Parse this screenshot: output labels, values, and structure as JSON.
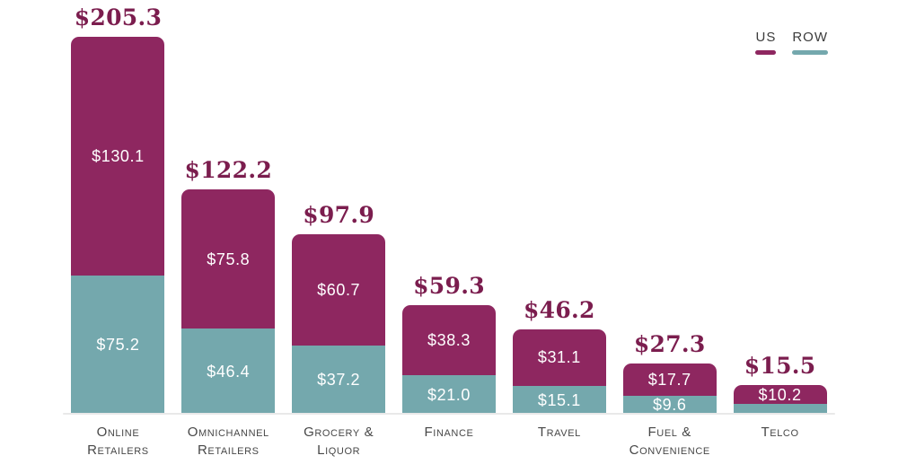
{
  "chart_data": {
    "type": "bar",
    "stacked": true,
    "orientation": "vertical",
    "grid": false,
    "legend_position": "top-right",
    "categories": [
      "Online Retailers",
      "Omnichannel Retailers",
      "Grocery & Liquor",
      "Finance",
      "Travel",
      "Fuel & Convenience",
      "Telco"
    ],
    "series": [
      {
        "name": "US",
        "color": "#8e2760",
        "values": [
          130.1,
          75.8,
          60.7,
          38.3,
          31.1,
          17.7,
          10.2
        ],
        "labels": [
          "$130.1",
          "$75.8",
          "$60.7",
          "$38.3",
          "$31.1",
          "$17.7",
          "$10.2"
        ]
      },
      {
        "name": "ROW",
        "color": "#74a8ad",
        "values": [
          75.2,
          46.4,
          37.2,
          21.0,
          15.1,
          9.6,
          5.3
        ],
        "labels": [
          "$75.2",
          "$46.4",
          "$37.2",
          "$21.0",
          "$15.1",
          "$9.6",
          ""
        ]
      }
    ],
    "totals": [
      205.3,
      122.2,
      97.9,
      59.3,
      46.2,
      27.3,
      15.5
    ],
    "total_labels": [
      "$205.3",
      "$122.2",
      "$97.9",
      "$59.3",
      "$46.2",
      "$27.3",
      "$15.5"
    ],
    "colors": {
      "total_label": "#7b1d4e",
      "axis_line": "#e9e9e9",
      "segment_label": "#ffffff",
      "category_label": "#474747",
      "legend_label": "#3c3c3c"
    },
    "ylim": [
      0,
      225
    ]
  }
}
